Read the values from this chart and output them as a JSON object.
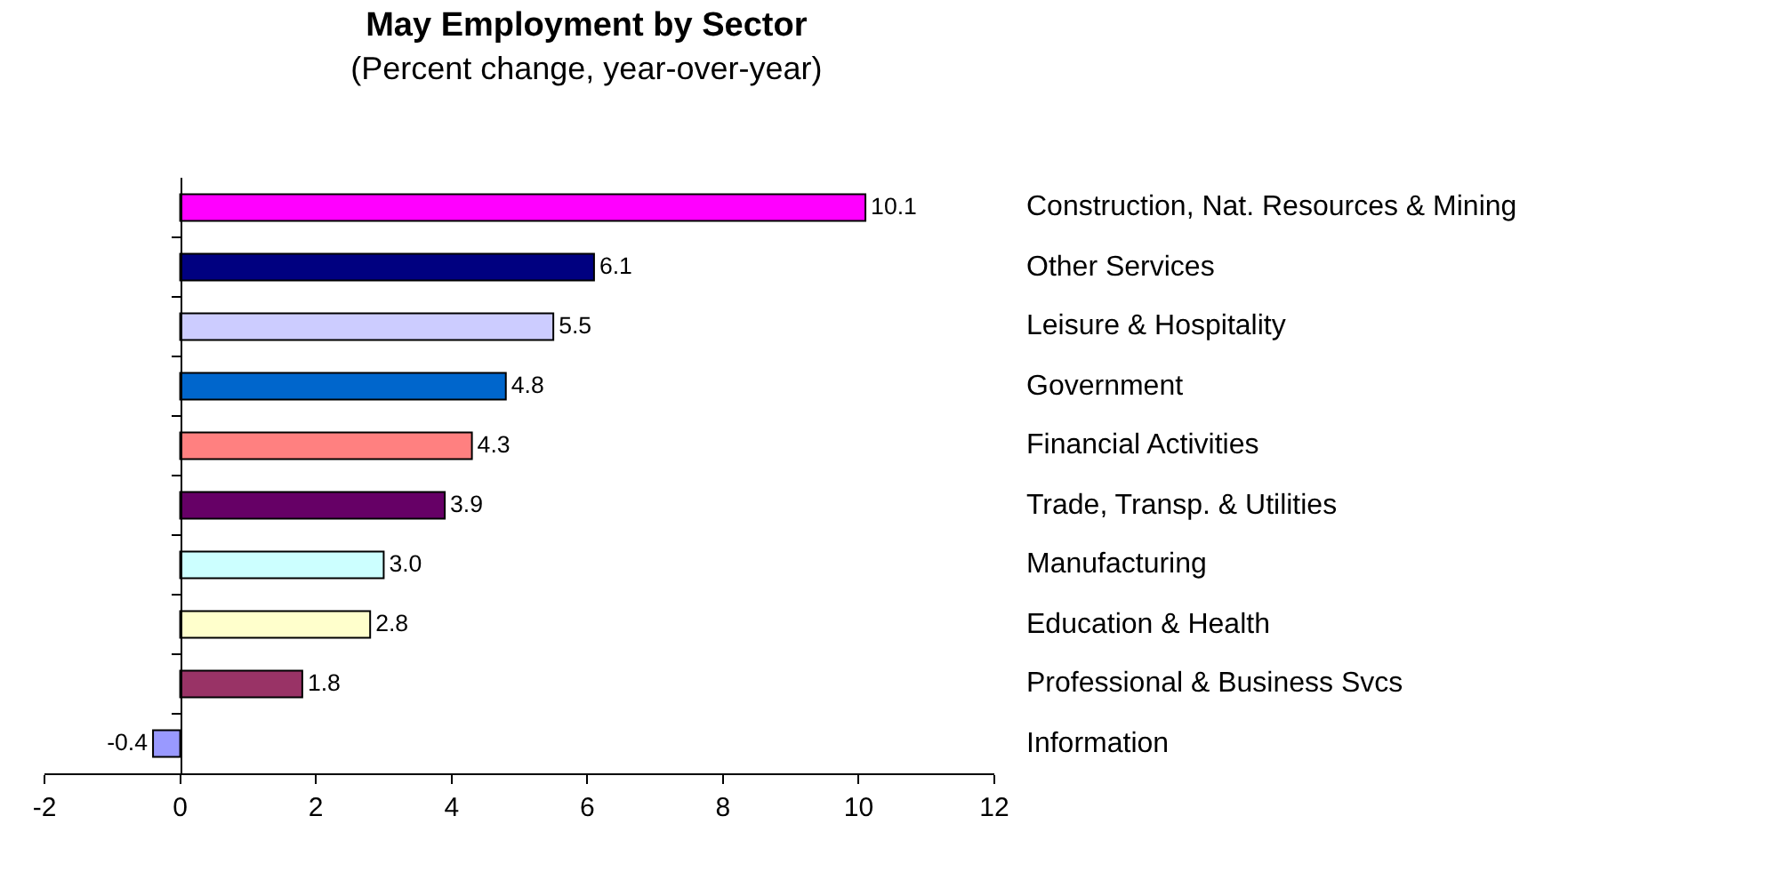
{
  "chart_data": {
    "type": "bar",
    "orientation": "horizontal",
    "title": "May Employment by Sector",
    "subtitle": "(Percent change, year-over-year)",
    "categories": [
      "Construction, Nat. Resources & Mining",
      "Other Services",
      "Leisure & Hospitality",
      "Government",
      "Financial Activities",
      "Trade, Transp. & Utilities",
      "Manufacturing",
      "Education & Health",
      "Professional & Business Svcs",
      "Information"
    ],
    "values": [
      10.1,
      6.1,
      5.5,
      4.8,
      4.3,
      3.9,
      3.0,
      2.8,
      1.8,
      -0.4
    ],
    "value_labels": [
      "10.1",
      "6.1",
      "5.5",
      "4.8",
      "4.3",
      "3.9",
      "3.0",
      "2.8",
      "1.8",
      "-0.4"
    ],
    "colors": [
      "#ff00ff",
      "#000080",
      "#ccccff",
      "#0066cc",
      "#ff8080",
      "#660066",
      "#ccffff",
      "#ffffcc",
      "#993366",
      "#9999ff"
    ],
    "xlim": [
      -2,
      12
    ],
    "xticks": [
      -2,
      0,
      2,
      4,
      6,
      8,
      10,
      12
    ],
    "legend": false
  }
}
